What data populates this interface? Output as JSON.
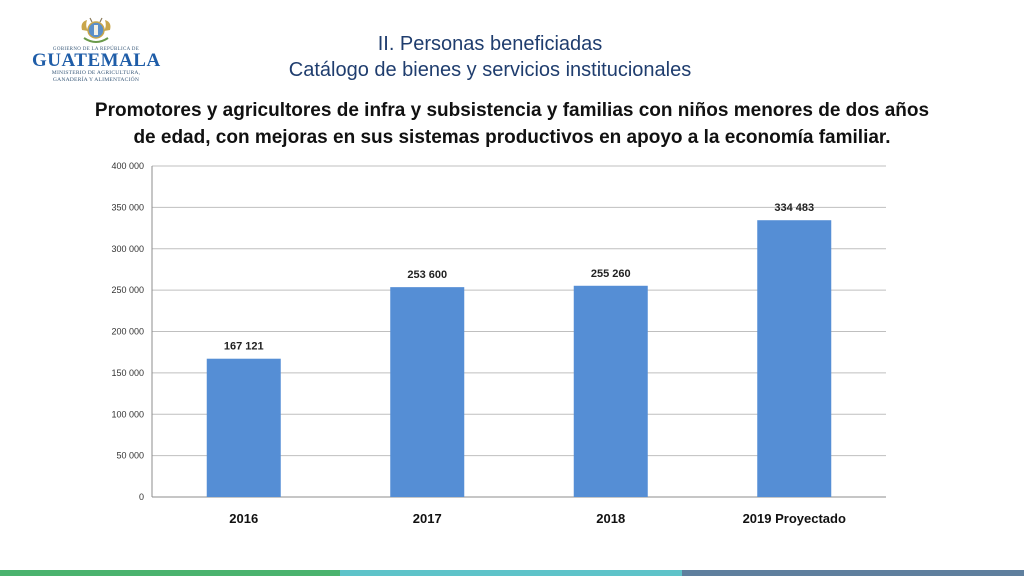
{
  "logo": {
    "government": "GOBIERNO DE LA REPÚBLICA DE",
    "country": "GUATEMALA",
    "ministry_line1": "MINISTERIO DE AGRICULTURA,",
    "ministry_line2": "GANADERÍA Y ALIMENTACIÓN"
  },
  "header": {
    "section": "II. Personas beneficiadas",
    "subsection": "Catálogo de bienes y servicios institucionales"
  },
  "chart_data": {
    "type": "bar",
    "title_line1": "Promotores y agricultores de infra y subsistencia y familias con niños menores de dos años",
    "title_line2": "de edad, con mejoras en sus sistemas productivos en apoyo a la economía familiar.",
    "categories": [
      "2016",
      "2017",
      "2018",
      "2019 Proyectado"
    ],
    "values": [
      167121,
      253600,
      255260,
      334483
    ],
    "data_labels": [
      "167 121",
      "253 600",
      "255 260",
      "334 483"
    ],
    "ylim": [
      0,
      400000
    ],
    "yticks": [
      0,
      50000,
      100000,
      150000,
      200000,
      250000,
      300000,
      350000,
      400000
    ],
    "ytick_labels": [
      "0",
      "50 000",
      "100 000",
      "150 000",
      "200 000",
      "250 000",
      "300 000",
      "350 000",
      "400 000"
    ],
    "grid": true,
    "legend": "none",
    "bar_color": "#558ed5"
  },
  "colors": {
    "footer": [
      "#4bb36e",
      "#5ec3c9",
      "#5f7f9e"
    ]
  }
}
